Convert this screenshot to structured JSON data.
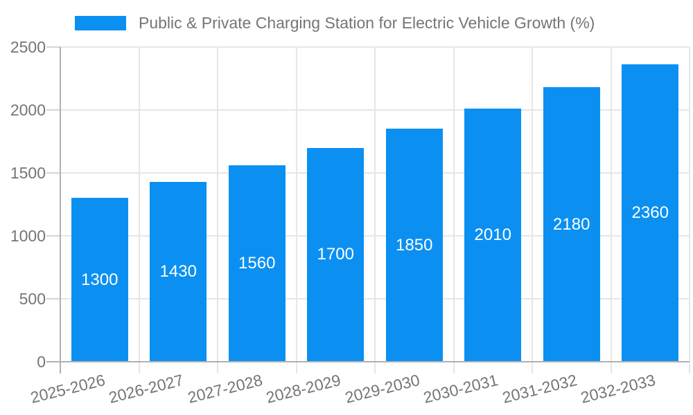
{
  "colors": {
    "bar": "#0b90f2",
    "grid": "#e6e6e6",
    "axis": "#b0b0b0",
    "tick": "#d4d4d4",
    "text": "#757575",
    "bar_label": "#ffffff",
    "background": "#ffffff"
  },
  "legend": {
    "label": "Public & Private Charging Station for Electric Vehicle Growth (%)"
  },
  "chart_data": {
    "type": "bar",
    "title": "Public & Private Charging Station for Electric Vehicle Growth (%)",
    "categories": [
      "2025-2026",
      "2026-2027",
      "2027-2028",
      "2028-2029",
      "2029-2030",
      "2030-2031",
      "2031-2032",
      "2032-2033"
    ],
    "values": [
      1300,
      1430,
      1560,
      1700,
      1850,
      2010,
      2180,
      2360
    ],
    "data_labels": [
      "1300",
      "1430",
      "1560",
      "1700",
      "1850",
      "2010",
      "2180",
      "2360"
    ],
    "xlabel": "",
    "ylabel": "",
    "ylim": [
      0,
      2500
    ],
    "yticks": [
      0,
      500,
      1000,
      1500,
      2000,
      2500
    ],
    "grid": true,
    "legend_position": "top-left",
    "x_tick_rotation_deg": -14,
    "data_label_position": "center-of-bar"
  }
}
